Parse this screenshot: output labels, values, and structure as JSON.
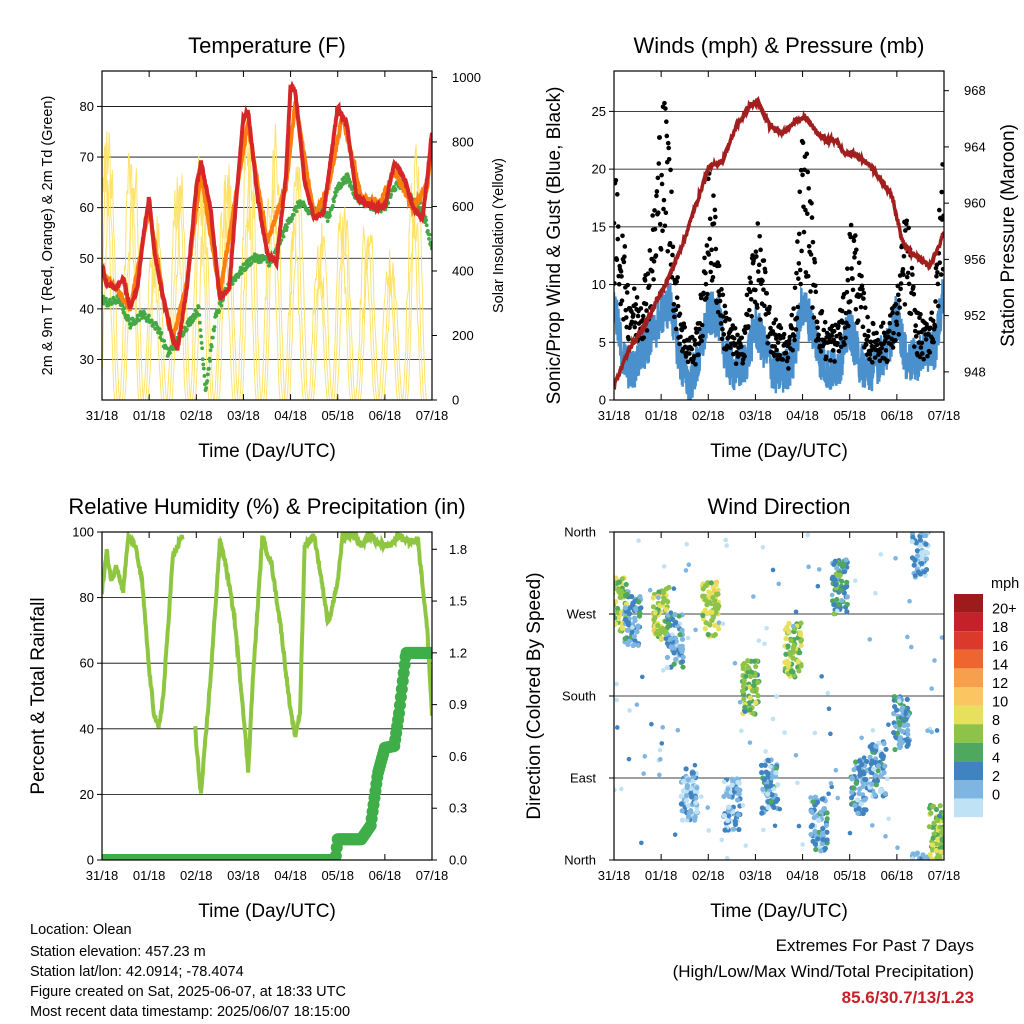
{
  "chart_data": [
    {
      "type": "line",
      "title": "Temperature (F)",
      "xlabel": "Time (Day/UTC)",
      "ylabel": "2m & 9m T (Red, Orange) & 2m Td (Green)",
      "y2label": "Solar Insolation (Yellow)",
      "x_ticks": [
        "31/18",
        "01/18",
        "02/18",
        "03/18",
        "04/18",
        "05/18",
        "06/18",
        "07/18"
      ],
      "y_ticks": [
        30,
        40,
        50,
        60,
        70,
        80
      ],
      "y2_ticks": [
        0,
        200,
        400,
        600,
        800,
        1000
      ],
      "ylim": [
        22,
        87
      ],
      "y2lim": [
        0,
        1020
      ],
      "series": [
        {
          "key": "t2m",
          "color": "#d62728",
          "x": [
            0,
            0.1,
            0.3,
            0.45,
            0.6,
            0.75,
            0.9,
            1.0,
            1.1,
            1.3,
            1.5,
            1.6,
            1.8,
            2.0,
            2.1,
            2.3,
            2.5,
            2.7,
            2.85,
            3.0,
            3.1,
            3.3,
            3.5,
            3.7,
            3.9,
            4.0,
            4.1,
            4.3,
            4.5,
            4.7,
            4.8,
            5.0,
            5.2,
            5.4,
            5.6,
            5.8,
            6.0,
            6.2,
            6.4,
            6.6,
            6.8,
            6.9,
            7.0
          ],
          "y": [
            48,
            45,
            44,
            46,
            40,
            44,
            56,
            62,
            52,
            42,
            34,
            32,
            44,
            64,
            69,
            60,
            42,
            44,
            62,
            78,
            79,
            62,
            51,
            49,
            66,
            84,
            83,
            65,
            58,
            59,
            66,
            80,
            76,
            62,
            61,
            60,
            60,
            69,
            66,
            60,
            58,
            66,
            75
          ]
        },
        {
          "key": "t9m",
          "color": "#ff7f0e",
          "x": [
            0,
            0.3,
            0.6,
            0.9,
            1.0,
            1.3,
            1.5,
            1.8,
            2.1,
            2.5,
            2.8,
            3.1,
            3.5,
            3.9,
            4.1,
            4.5,
            4.8,
            5.1,
            5.5,
            5.9,
            6.2,
            6.6,
            6.9,
            7.0
          ],
          "y": [
            47,
            44,
            40,
            55,
            60,
            42,
            34,
            45,
            67,
            43,
            60,
            77,
            53,
            64,
            81,
            58,
            64,
            78,
            62,
            61,
            67,
            60,
            64,
            73
          ]
        },
        {
          "key": "td2m",
          "color": "#44a844",
          "x": [
            0,
            0.15,
            0.35,
            0.6,
            0.85,
            1.0,
            1.2,
            1.4,
            1.6,
            1.9,
            2.05,
            2.2,
            2.4,
            2.6,
            2.8,
            3.0,
            3.2,
            3.4,
            3.6,
            3.8,
            4.0,
            4.2,
            4.4,
            4.6,
            4.8,
            5.0,
            5.2,
            5.4,
            5.6,
            5.8,
            6.0,
            6.2,
            6.4,
            6.6,
            6.8,
            7.0
          ],
          "y": [
            42,
            41,
            42,
            37,
            39,
            38,
            36,
            31,
            34,
            38,
            40,
            24,
            38,
            43,
            46,
            48,
            50,
            50,
            49,
            54,
            58,
            61,
            59,
            60,
            58,
            64,
            66,
            62,
            61,
            60,
            60,
            64,
            65,
            61,
            60,
            52
          ]
        },
        {
          "key": "solar",
          "color": "#fde36a",
          "axis": "y2",
          "peaks": [
            0.12,
            0.63,
            1.12,
            1.63,
            2.12,
            2.63,
            3.12,
            3.63,
            4.12,
            4.63,
            5.12,
            5.63,
            6.12,
            6.63
          ],
          "values": [
            930,
            900,
            650,
            800,
            800,
            850,
            950,
            950,
            820,
            600,
            750,
            650,
            500,
            900
          ]
        }
      ]
    },
    {
      "type": "line",
      "title": "Winds (mph) & Pressure (mb)",
      "xlabel": "Time (Day/UTC)",
      "ylabel": "Sonic/Prop Wind & Gust (Blue, Black)",
      "y2label": "Station Pressure (Maroon)",
      "x_ticks": [
        "31/18",
        "01/18",
        "02/18",
        "03/18",
        "04/18",
        "05/18",
        "06/18",
        "07/18"
      ],
      "y_ticks": [
        0,
        5,
        10,
        15,
        20,
        25
      ],
      "y2_ticks": [
        948,
        952,
        956,
        960,
        964,
        968
      ],
      "ylim": [
        0,
        28.5
      ],
      "y2lim": [
        946.0,
        969.4
      ],
      "series": [
        {
          "key": "pressure",
          "color": "#a01e1e",
          "axis": "y2",
          "x": [
            0,
            0.3,
            0.6,
            0.9,
            1.2,
            1.5,
            1.8,
            2.0,
            2.3,
            2.6,
            2.9,
            3.05,
            3.3,
            3.6,
            3.9,
            4.1,
            4.3,
            4.5,
            4.7,
            4.9,
            5.1,
            5.4,
            5.7,
            5.9,
            6.1,
            6.3,
            6.5,
            6.7,
            6.9,
            7.0
          ],
          "y": [
            947.0,
            949.5,
            951.0,
            953.0,
            955.0,
            957.5,
            960.5,
            962.5,
            963.0,
            965.5,
            967.0,
            967.2,
            965.5,
            965.0,
            966.0,
            966.0,
            965.0,
            964.5,
            964.5,
            963.5,
            963.5,
            962.8,
            961.5,
            960.5,
            957.5,
            956.5,
            956.0,
            955.5,
            957.0,
            958.0
          ]
        },
        {
          "key": "wind",
          "color": "#4a90cc",
          "x": [
            0,
            0.2,
            0.4,
            0.6,
            0.8,
            1.0,
            1.2,
            1.4,
            1.6,
            1.8,
            2.0,
            2.2,
            2.4,
            2.6,
            2.8,
            3.0,
            3.2,
            3.4,
            3.6,
            3.8,
            4.0,
            4.2,
            4.4,
            4.6,
            4.8,
            5.0,
            5.2,
            5.4,
            5.6,
            5.8,
            6.0,
            6.2,
            6.4,
            6.6,
            6.8,
            7.0
          ],
          "y": [
            8,
            3,
            2,
            4,
            5,
            7,
            8,
            3,
            1,
            3,
            7,
            7,
            3,
            2,
            3,
            6,
            4,
            2,
            2,
            3,
            8,
            6,
            3,
            2,
            3,
            6,
            3,
            2,
            3,
            4,
            7,
            3,
            3,
            4,
            4,
            9
          ]
        },
        {
          "key": "gust",
          "color": "#000000",
          "x": [
            0,
            0.15,
            0.3,
            0.5,
            0.7,
            0.85,
            1.0,
            1.15,
            1.3,
            1.5,
            1.7,
            1.9,
            2.0,
            2.15,
            2.3,
            2.5,
            2.7,
            2.9,
            3.0,
            3.15,
            3.3,
            3.5,
            3.7,
            3.85,
            4.0,
            4.15,
            4.3,
            4.5,
            4.7,
            4.9,
            5.05,
            5.2,
            5.4,
            5.6,
            5.8,
            6.0,
            6.2,
            6.4,
            6.6,
            6.8,
            7.0
          ],
          "y": [
            15,
            12,
            8,
            7,
            9,
            13,
            20,
            19,
            9,
            5,
            4,
            8,
            15,
            13,
            7,
            5,
            4,
            9,
            12,
            10,
            6,
            5,
            4,
            8,
            18,
            15,
            7,
            5,
            5,
            7,
            13,
            9,
            5,
            5,
            5,
            7,
            13,
            6,
            5,
            7,
            18
          ]
        }
      ]
    },
    {
      "type": "line",
      "title": "Relative Humidity (%) & Precipitation (in)",
      "xlabel": "Time (Day/UTC)",
      "ylabel": "Percent & Total Rainfall",
      "x_ticks": [
        "31/18",
        "01/18",
        "02/18",
        "03/18",
        "04/18",
        "05/18",
        "06/18",
        "07/18"
      ],
      "y_ticks": [
        0,
        20,
        40,
        60,
        80,
        100
      ],
      "y2_ticks": [
        "0.0",
        "0.3",
        "0.6",
        "0.9",
        "1.2",
        "1.5",
        "1.8"
      ],
      "ylim": [
        0,
        100
      ],
      "y2lim": [
        0,
        1.9
      ],
      "series": [
        {
          "key": "rh",
          "color": "#8ec641",
          "x": [
            0,
            0.1,
            0.2,
            0.3,
            0.45,
            0.55,
            0.7,
            0.85,
            1.0,
            1.1,
            1.2,
            1.3,
            1.5,
            1.7,
            1.8,
            2.0,
            2.1,
            2.3,
            2.5,
            2.6,
            2.8,
            3.0,
            3.1,
            3.2,
            3.4,
            3.6,
            3.8,
            4.0,
            4.1,
            4.2,
            4.3,
            4.5,
            4.65,
            4.8,
            5.0,
            5.1,
            5.3,
            5.5,
            5.7,
            5.9,
            6.1,
            6.3,
            6.5,
            6.7,
            6.9,
            7.0
          ],
          "y": [
            82,
            94,
            85,
            90,
            82,
            98,
            96,
            85,
            58,
            45,
            40,
            50,
            92,
            99,
            88,
            35,
            20,
            55,
            97,
            92,
            75,
            45,
            27,
            55,
            98,
            90,
            70,
            45,
            38,
            45,
            96,
            99,
            86,
            72,
            85,
            98,
            99,
            96,
            99,
            96,
            96,
            99,
            97,
            98,
            70,
            44
          ]
        },
        {
          "key": "precip",
          "color": "#3fae49",
          "axis": "y2",
          "x": [
            0,
            4.95,
            5.0,
            5.5,
            5.7,
            5.85,
            6.0,
            6.2,
            6.3,
            6.45,
            7.0
          ],
          "y": [
            0,
            0,
            0.12,
            0.12,
            0.2,
            0.5,
            0.65,
            0.66,
            0.85,
            1.2,
            1.2
          ]
        }
      ]
    },
    {
      "type": "scatter",
      "title": "Wind Direction",
      "xlabel": "Time (Day/UTC)",
      "ylabel": "Direction (Colored By Speed)",
      "x_ticks": [
        "31/18",
        "01/18",
        "02/18",
        "03/18",
        "04/18",
        "05/18",
        "06/18",
        "07/18"
      ],
      "y_ticks": [
        "North",
        "East",
        "South",
        "West",
        "North"
      ],
      "y_values": [
        0,
        90,
        180,
        270,
        360
      ],
      "legend_title": "mph",
      "legend_labels": [
        "20+",
        "18",
        "16",
        "14",
        "12",
        "10",
        "8",
        "6",
        "4",
        "2",
        "0"
      ],
      "legend_colors": [
        "#9e1b1b",
        "#c4222a",
        "#d93a2b",
        "#ee6530",
        "#f6a04d",
        "#fbc562",
        "#e6e05d",
        "#8dc348",
        "#4ea85e",
        "#3f83c0",
        "#7fb6e1",
        "#bfe3f5"
      ],
      "clusters": [
        {
          "x": 0.1,
          "dir": 280,
          "speed": 8
        },
        {
          "x": 0.4,
          "dir": 265,
          "speed": 4
        },
        {
          "x": 1.0,
          "dir": 270,
          "speed": 9
        },
        {
          "x": 1.3,
          "dir": 240,
          "speed": 3
        },
        {
          "x": 1.6,
          "dir": 70,
          "speed": 2
        },
        {
          "x": 2.05,
          "dir": 275,
          "speed": 9
        },
        {
          "x": 2.5,
          "dir": 60,
          "speed": 2
        },
        {
          "x": 2.9,
          "dir": 190,
          "speed": 7
        },
        {
          "x": 3.3,
          "dir": 80,
          "speed": 3
        },
        {
          "x": 3.8,
          "dir": 230,
          "speed": 8
        },
        {
          "x": 4.35,
          "dir": 40,
          "speed": 3
        },
        {
          "x": 4.8,
          "dir": 300,
          "speed": 5
        },
        {
          "x": 5.2,
          "dir": 80,
          "speed": 3
        },
        {
          "x": 5.6,
          "dir": 100,
          "speed": 3
        },
        {
          "x": 6.1,
          "dir": 150,
          "speed": 4
        },
        {
          "x": 6.5,
          "dir": 340,
          "speed": 2
        },
        {
          "x": 6.85,
          "dir": 30,
          "speed": 8
        }
      ]
    }
  ],
  "info": {
    "location": "Location: Olean",
    "elevation": "Station elevation: 457.23 m",
    "latlon": "Station lat/lon: 42.0914; -78.4074",
    "created": "Figure created on Sat, 2025-06-07, at 18:33 UTC",
    "recent": "Most recent data timestamp: 2025/06/07 18:15:00"
  },
  "extremes": {
    "heading": "Extremes For Past 7 Days",
    "subheading": "(High/Low/Max Wind/Total Precipitation)",
    "values": "85.6/30.7/13/1.23"
  }
}
